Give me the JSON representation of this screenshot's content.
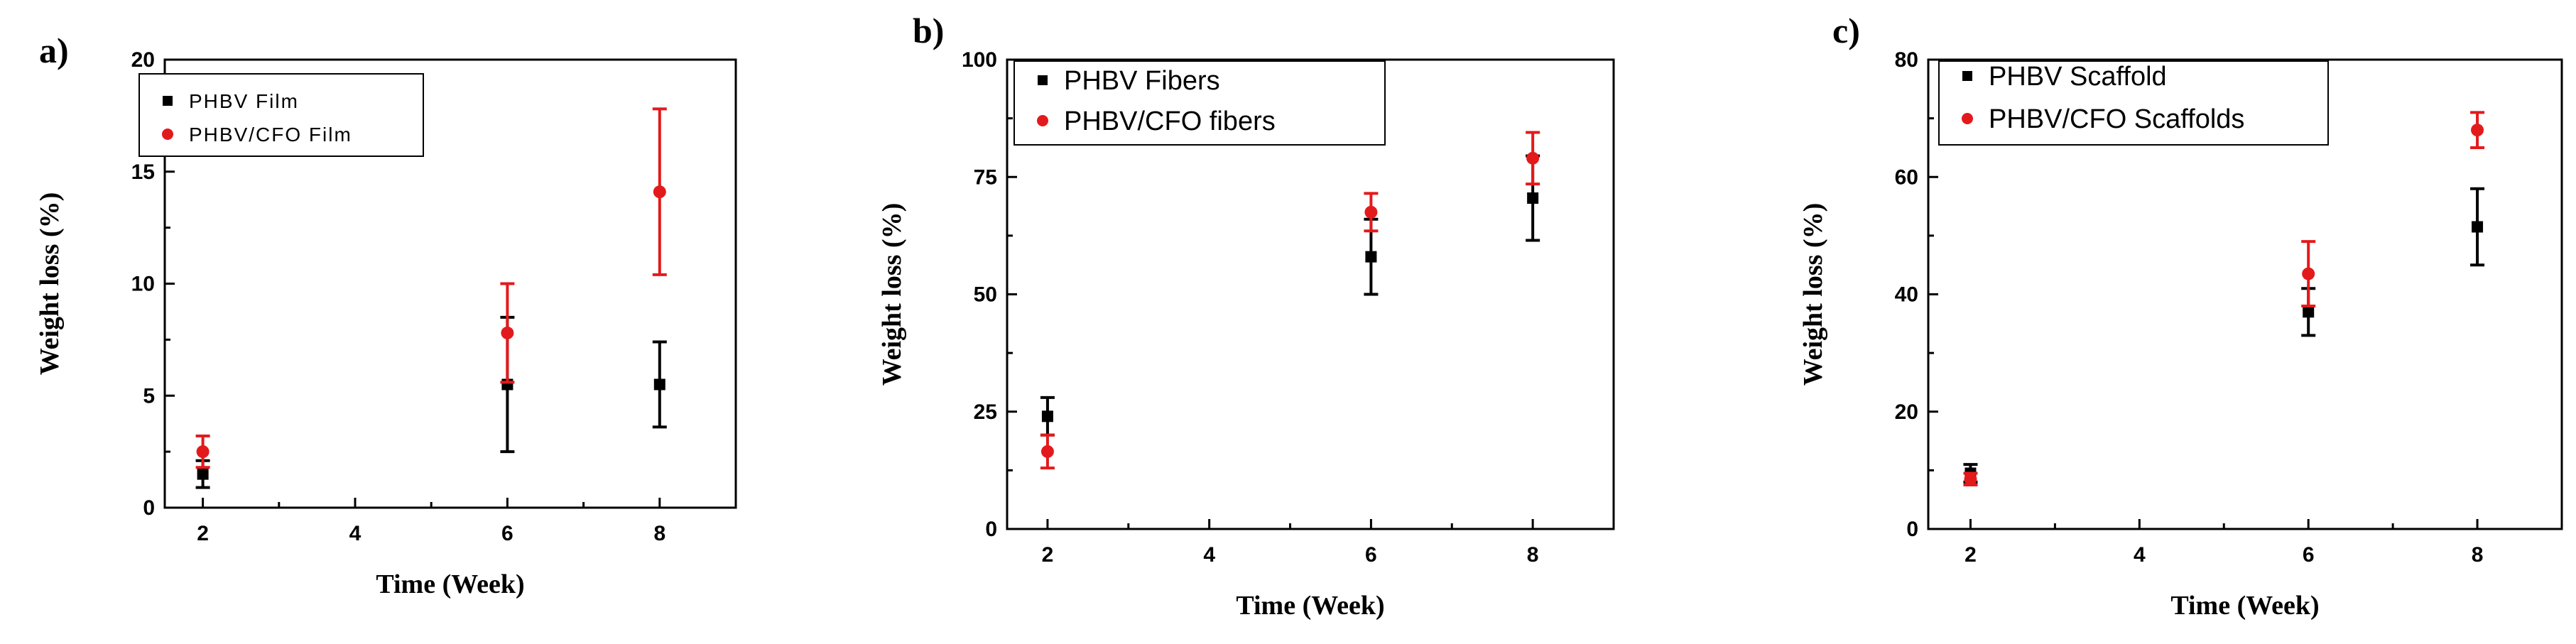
{
  "chart_data": [
    {
      "type": "scatter",
      "panel_label": "a)",
      "xlabel": "Time (Week)",
      "ylabel": "Weight loss (%)",
      "xlim": [
        1.5,
        9
      ],
      "ylim": [
        0,
        20
      ],
      "xticks": [
        "2",
        "4",
        "6",
        "8"
      ],
      "yticks": [
        "0",
        "5",
        "10",
        "15",
        "20"
      ],
      "legend_position": "top-left",
      "series": [
        {
          "name": "PHBV Film",
          "color": "#000000",
          "marker": "square",
          "x": [
            2,
            6,
            8
          ],
          "y": [
            1.5,
            5.5,
            5.5
          ],
          "yerr": [
            0.6,
            3.0,
            1.9
          ]
        },
        {
          "name": "PHBV/CFO Film",
          "color": "#e31a1c",
          "marker": "circle",
          "x": [
            2,
            6,
            8
          ],
          "y": [
            2.5,
            7.8,
            14.1
          ],
          "yerr": [
            0.7,
            2.2,
            3.7
          ]
        }
      ]
    },
    {
      "type": "scatter",
      "panel_label": "b)",
      "xlabel": "Time (Week)",
      "ylabel": "Weight loss (%)",
      "xlim": [
        1.5,
        9
      ],
      "ylim": [
        0,
        100
      ],
      "xticks": [
        "2",
        "4",
        "6",
        "8"
      ],
      "yticks": [
        "0",
        "25",
        "50",
        "75",
        "100"
      ],
      "legend_position": "top-left",
      "series": [
        {
          "name": "PHBV Fibers",
          "color": "#000000",
          "marker": "square",
          "x": [
            2,
            6,
            8
          ],
          "y": [
            24,
            58,
            70.5
          ],
          "yerr": [
            4,
            8,
            9
          ]
        },
        {
          "name": "PHBV/CFO fibers",
          "color": "#e31a1c",
          "marker": "circle",
          "x": [
            2,
            6,
            8
          ],
          "y": [
            16.5,
            67.5,
            79
          ],
          "yerr": [
            3.5,
            4,
            5.5
          ]
        }
      ]
    },
    {
      "type": "scatter",
      "panel_label": "c)",
      "xlabel": "Time (Week)",
      "ylabel": "Weight loss (%)",
      "xlim": [
        1.5,
        9
      ],
      "ylim": [
        0,
        80
      ],
      "xticks": [
        "2",
        "4",
        "6",
        "8"
      ],
      "yticks": [
        "0",
        "20",
        "40",
        "60",
        "80"
      ],
      "legend_position": "top-left",
      "series": [
        {
          "name": "PHBV Scaffold",
          "color": "#000000",
          "marker": "square",
          "x": [
            2,
            6,
            8
          ],
          "y": [
            9.5,
            37,
            51.5
          ],
          "yerr": [
            1.5,
            4,
            6.5
          ]
        },
        {
          "name": "PHBV/CFO Scaffolds",
          "color": "#e31a1c",
          "marker": "circle",
          "x": [
            2,
            6,
            8
          ],
          "y": [
            8.5,
            43.5,
            68
          ],
          "yerr": [
            1,
            5.5,
            3
          ]
        }
      ]
    }
  ]
}
